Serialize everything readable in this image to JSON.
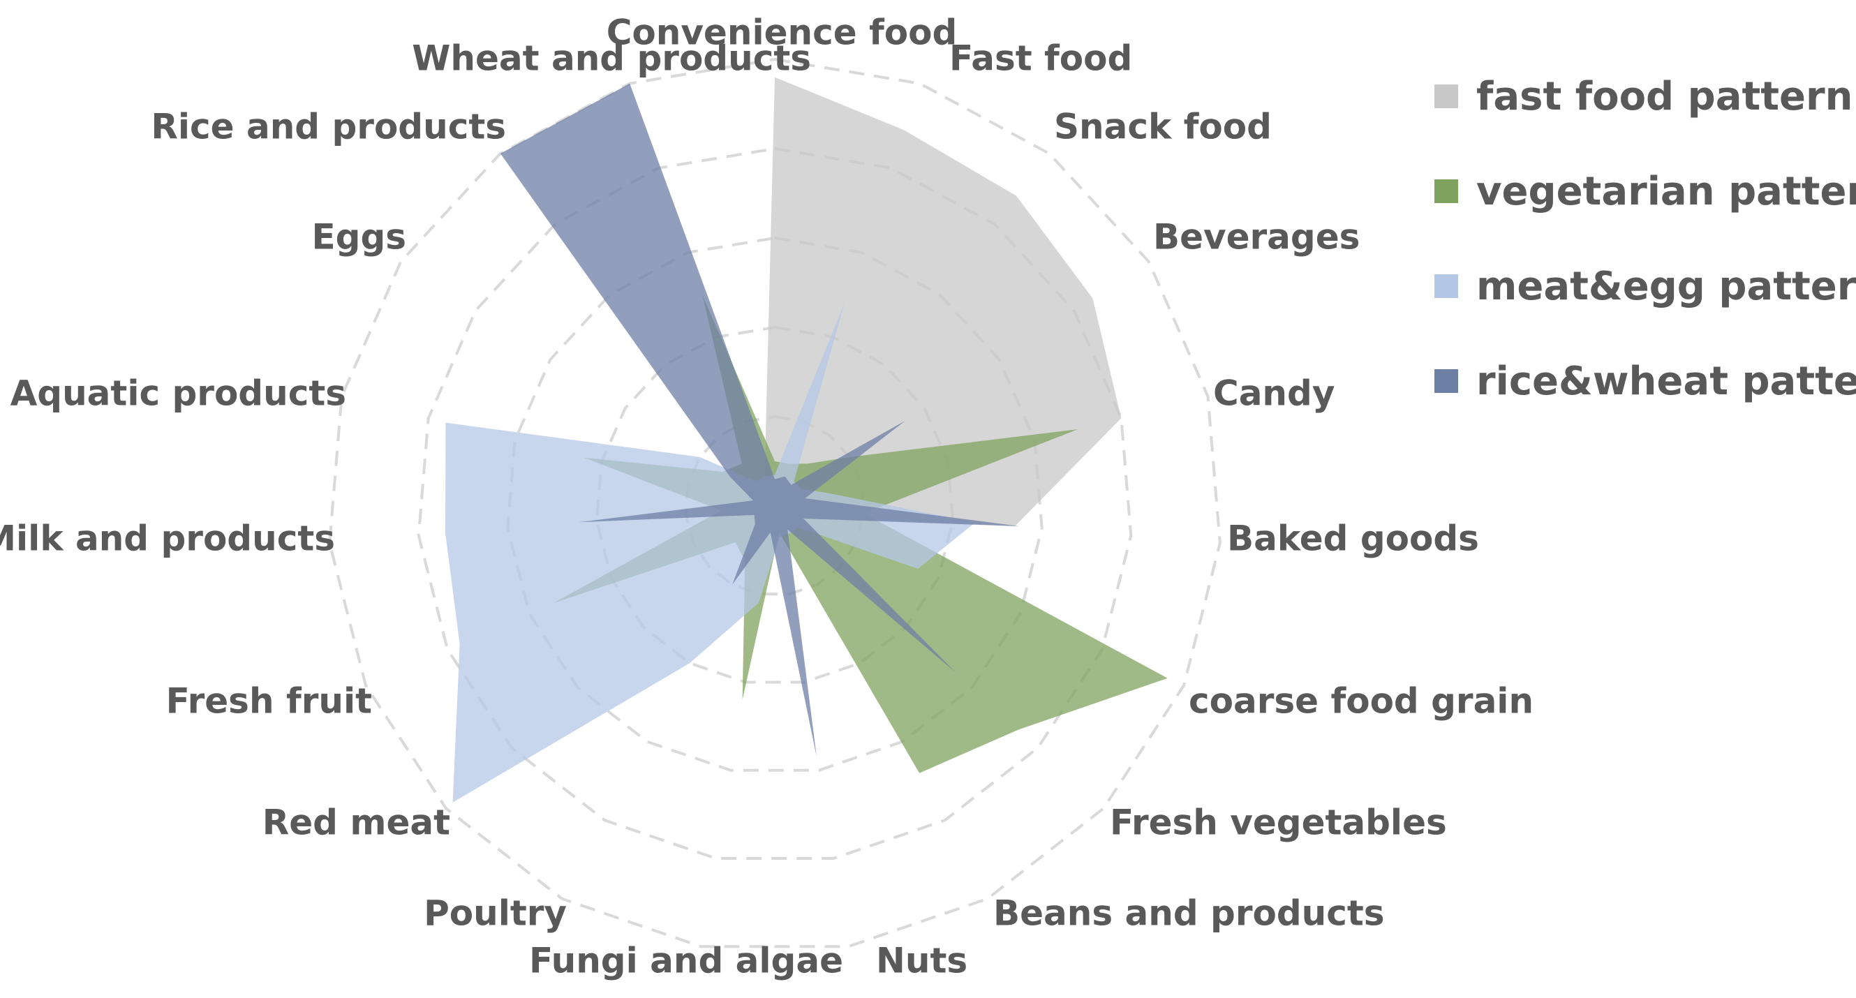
{
  "chart_data": {
    "type": "radar",
    "title": "",
    "categories": [
      "Convenience food",
      "Fast food",
      "Snack food",
      "Beverages",
      "Candy",
      "Baked goods",
      "coarse food grain",
      "Fresh vegetables",
      "Beans and products",
      "Nuts",
      "Fungi and algae",
      "Poultry",
      "Red meat",
      "Fresh fruit",
      "Milk and products",
      "Aquatic products",
      "Eggs",
      "Rice and products",
      "Wheat and products"
    ],
    "rlim": [
      0,
      1.0
    ],
    "rings": [
      0.2,
      0.4,
      0.6,
      0.8,
      1.0
    ],
    "grid": "dashed",
    "legend_position": "top-right",
    "series": [
      {
        "name": "fast food pattern",
        "color": "#c8c8c8",
        "values": [
          0.96,
          0.89,
          0.88,
          0.85,
          0.8,
          0.54,
          0.06,
          0.05,
          0.05,
          0.05,
          0.05,
          0.05,
          0.05,
          0.06,
          0.06,
          0.06,
          0.07,
          0.06,
          0.07
        ]
      },
      {
        "name": "vegetarian pattern",
        "color": "#7fa35e",
        "values": [
          0.1,
          0.1,
          0.12,
          0.2,
          0.7,
          0.2,
          0.96,
          0.74,
          0.68,
          0.06,
          0.44,
          0.14,
          0.12,
          0.54,
          0.12,
          0.44,
          0.14,
          0.12,
          0.5
        ]
      },
      {
        "name": "meat&egg pattern",
        "color": "#b4c7e7",
        "values": [
          0.07,
          0.48,
          0.07,
          0.07,
          0.12,
          0.45,
          0.35,
          0.07,
          0.07,
          0.07,
          0.22,
          0.4,
          0.98,
          0.77,
          0.74,
          0.76,
          0.2,
          0.07,
          0.07
        ]
      },
      {
        "name": "rice&wheat pattern",
        "color": "#6e7fa5",
        "values": [
          0.06,
          0.07,
          0.06,
          0.35,
          0.07,
          0.55,
          0.07,
          0.55,
          0.06,
          0.57,
          0.06,
          0.2,
          0.06,
          0.05,
          0.44,
          0.05,
          0.12,
          1.0,
          1.0
        ]
      }
    ]
  }
}
